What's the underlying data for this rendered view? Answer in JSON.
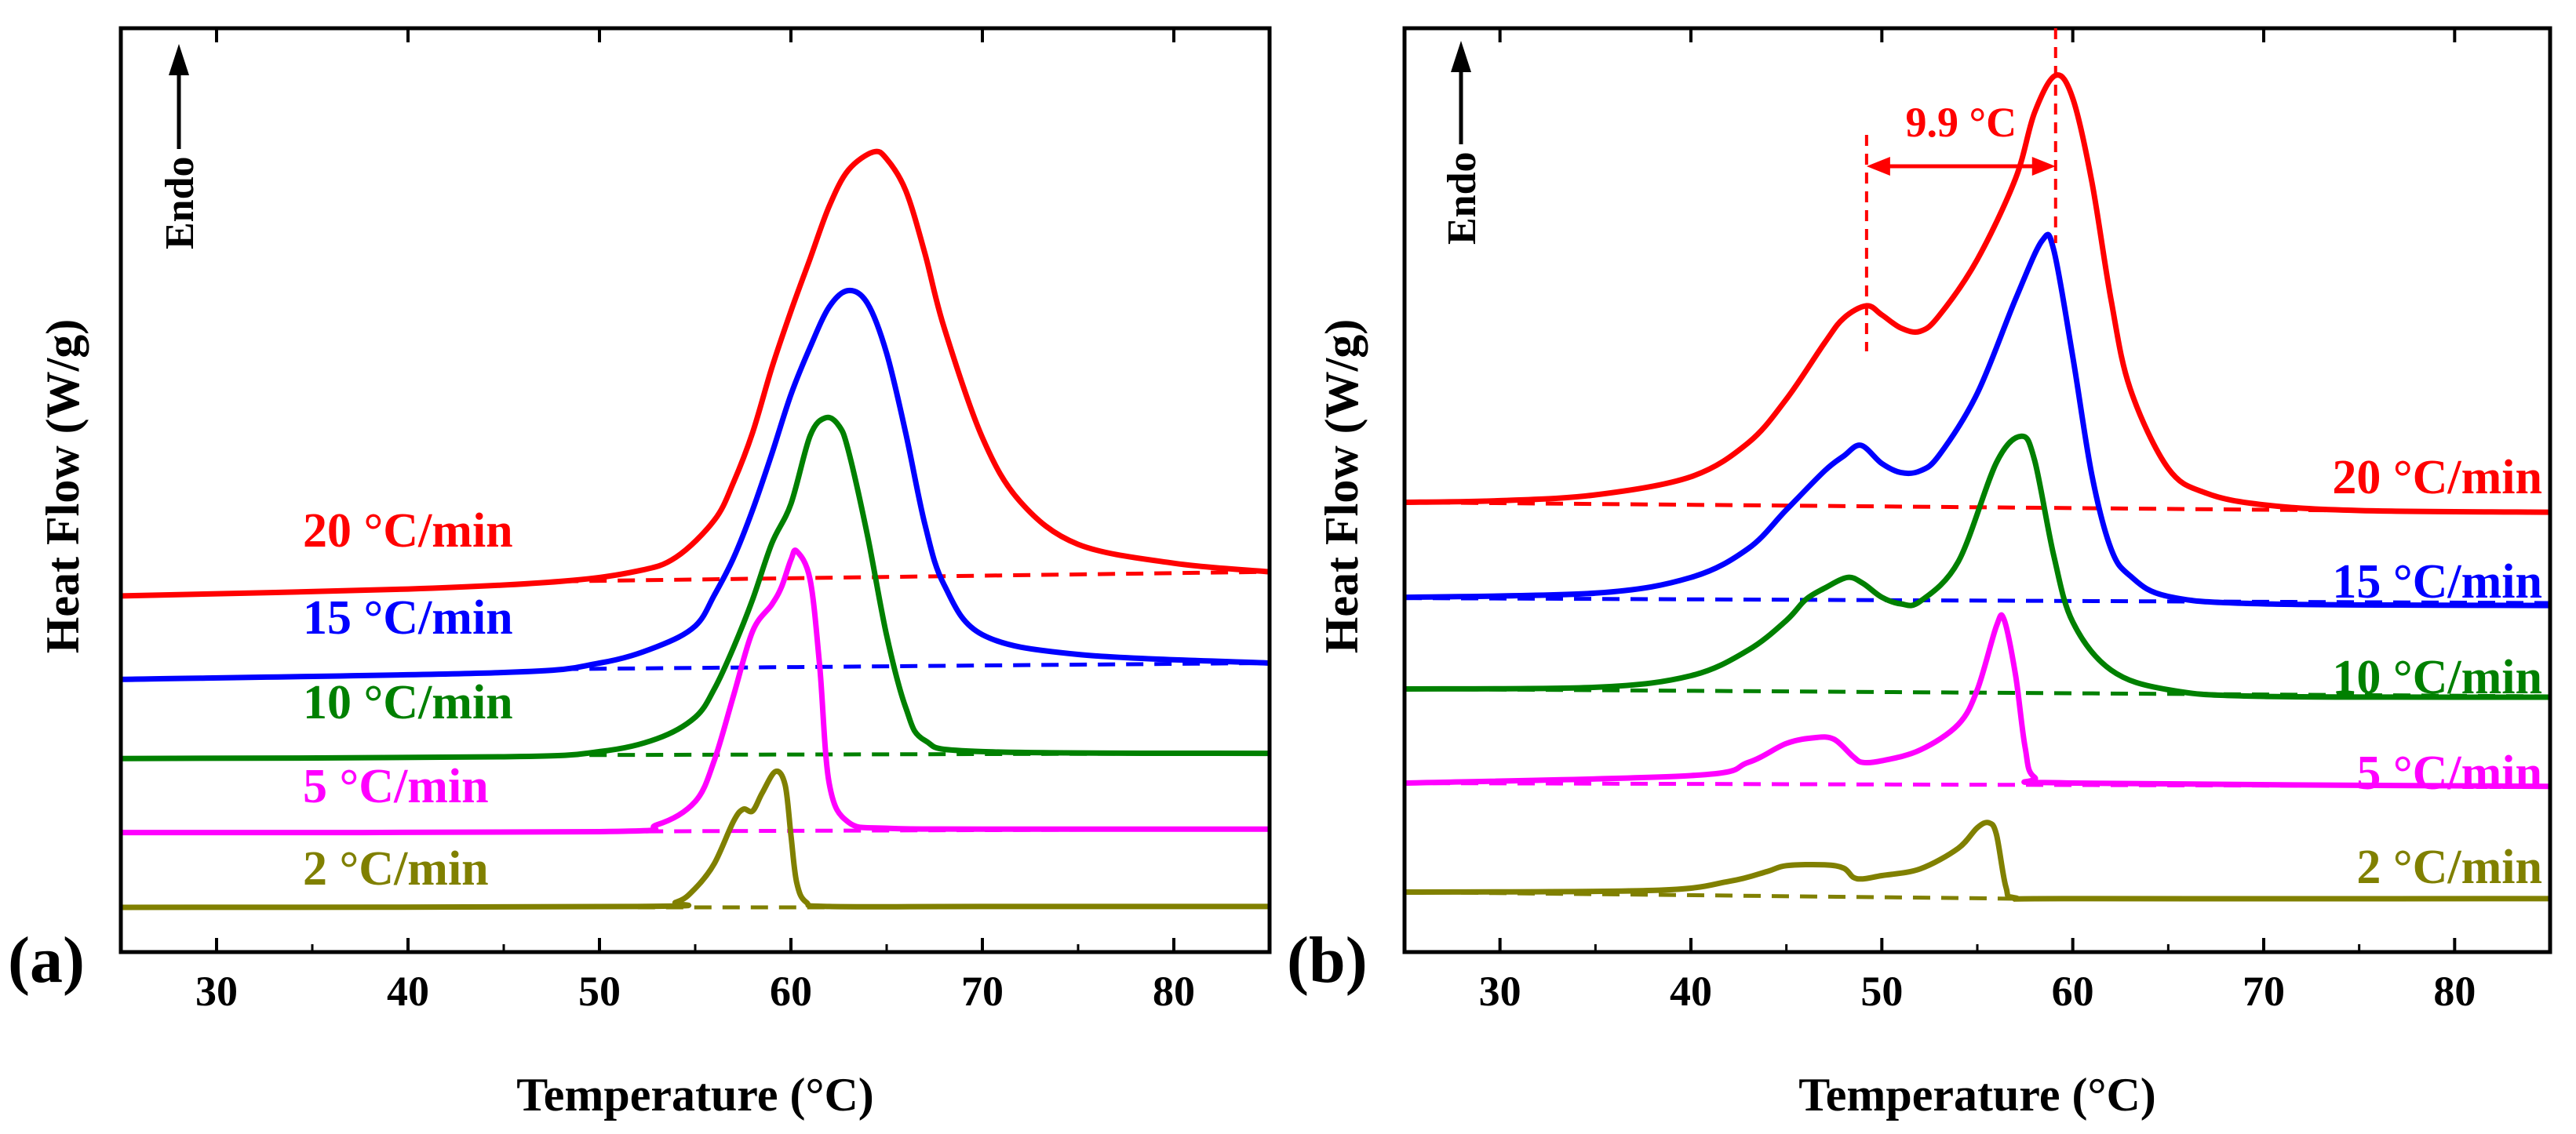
{
  "chart_data": [
    {
      "panel_label": "(a)",
      "type": "line",
      "xlabel": "Temperature (°C)",
      "ylabel": "Heat Flow (W/g)",
      "endo_label": "Endo",
      "xlim": [
        25,
        85
      ],
      "ylim": [
        0,
        100
      ],
      "xticks": [
        30,
        40,
        50,
        60,
        70,
        80
      ],
      "xtick_labels": [
        "30",
        "40",
        "50",
        "60",
        "70",
        "80"
      ],
      "legend_placement": "labels on curves, left side",
      "series": [
        {
          "name": "20 °C/min",
          "color": "#ff0000",
          "x": [
            25,
            40,
            48,
            52,
            54,
            56,
            57,
            58,
            59,
            60,
            61,
            62,
            63,
            64.3,
            65,
            66,
            67,
            68,
            70,
            72,
            75,
            80,
            85
          ],
          "y": [
            36.2,
            37,
            37.9,
            39.1,
            40.7,
            45,
            49.4,
            55.2,
            62.7,
            69.3,
            75.4,
            81.5,
            85.7,
            87.8,
            87,
            83.3,
            76,
            67.4,
            54.6,
            47.1,
            42.2,
            40,
            39
          ],
          "baseline_x": [
            48,
            85
          ],
          "baseline_y": [
            37.9,
            39
          ]
        },
        {
          "name": "15 °C/min",
          "color": "#0000ff",
          "x": [
            25,
            45,
            50,
            53,
            55,
            56,
            57,
            58,
            59,
            60,
            61,
            62,
            63,
            64,
            65,
            66,
            67,
            68,
            70,
            75,
            85
          ],
          "y": [
            26.5,
            27.3,
            28.4,
            30.3,
            32.7,
            36.3,
            40.6,
            46.2,
            52.7,
            59.6,
            65.1,
            69.8,
            71.7,
            70.2,
            64.4,
            55.1,
            44.5,
            37.5,
            31.7,
            29.4,
            28.4
          ],
          "baseline_x": [
            48,
            85
          ],
          "baseline_y": [
            27.7,
            28.4
          ]
        },
        {
          "name": "10 °C/min",
          "color": "#008000",
          "x": [
            25,
            45,
            50,
            53,
            55,
            56,
            57,
            58,
            59,
            60,
            61,
            61.8,
            62.5,
            63,
            64,
            65,
            66,
            67,
            70,
            85
          ],
          "y": [
            17.3,
            17.5,
            18.1,
            19.6,
            22.1,
            25.4,
            30.2,
            35.8,
            42.3,
            46.9,
            54.8,
            56.9,
            56,
            53.1,
            43.2,
            31.6,
            23.2,
            19.4,
            18.1,
            17.9
          ],
          "baseline_x": [
            48,
            85
          ],
          "baseline_y": [
            17.7,
            17.9
          ]
        },
        {
          "name": "5 °C/min",
          "color": "#ff00ff",
          "x": [
            25,
            50,
            53,
            55,
            56,
            57,
            58,
            59,
            59.5,
            60,
            60.3,
            61,
            61.5,
            62,
            63,
            65,
            70,
            85
          ],
          "y": [
            8.7,
            8.8,
            9.6,
            12.3,
            17.1,
            24.6,
            32.1,
            35.2,
            37.2,
            40.4,
            41.4,
            38.1,
            28.1,
            14.4,
            9.9,
            9.2,
            9.1,
            9.1
          ],
          "baseline_x": [
            48,
            85
          ],
          "baseline_y": [
            8.8,
            9.1
          ]
        },
        {
          "name": "2 °C/min",
          "color": "#808000",
          "x": [
            25,
            52,
            54,
            55,
            56,
            57,
            57.5,
            58,
            58.5,
            59.2,
            59.7,
            60,
            60.3,
            60.8,
            62,
            70,
            85
          ],
          "y": [
            0,
            0.1,
            0.6,
            2.2,
            5.1,
            10,
            11.4,
            11.2,
            13.3,
            15.8,
            14.2,
            8.4,
            2.9,
            0.6,
            0.1,
            0.1,
            0.1
          ],
          "baseline_x": [
            52,
            62
          ],
          "baseline_y": [
            0,
            0
          ]
        }
      ]
    },
    {
      "panel_label": "(b)",
      "type": "line",
      "xlabel": "Temperature (°C)",
      "ylabel": "Heat Flow (W/g)",
      "endo_label": "Endo",
      "xlim": [
        25,
        85
      ],
      "ylim": [
        0,
        100
      ],
      "xticks": [
        30,
        40,
        50,
        60,
        70,
        80
      ],
      "xtick_labels": [
        "30",
        "40",
        "50",
        "60",
        "70",
        "80"
      ],
      "legend_placement": "labels on curves, right side",
      "annotation": {
        "text": "9.9 °C",
        "x_start": 49.2,
        "x_end": 59.1
      },
      "series": [
        {
          "name": "20 °C/min",
          "color": "#ff0000",
          "x": [
            25,
            30,
            35,
            40,
            43,
            45,
            47,
            48,
            49.2,
            50,
            51,
            52,
            53,
            55,
            57,
            58,
            59.1,
            60,
            61,
            62,
            63,
            65,
            67,
            70,
            75,
            85
          ],
          "y": [
            48.1,
            48.3,
            49,
            51.2,
            55.3,
            60.6,
            67.4,
            70.4,
            71.9,
            70.8,
            69.2,
            68.8,
            70.7,
            77.5,
            87.3,
            95.3,
            99.8,
            97,
            86.9,
            72.7,
            61.9,
            52.2,
            49.2,
            47.8,
            47.1,
            46.9
          ],
          "baseline_x": [
            25,
            85
          ],
          "baseline_y": [
            48.1,
            46.9
          ]
        },
        {
          "name": "15 °C/min",
          "color": "#0000ff",
          "x": [
            25,
            35,
            40,
            43,
            45,
            47,
            48,
            48.9,
            50,
            51,
            52,
            53,
            55,
            57,
            58.4,
            59,
            60,
            61,
            62,
            63,
            65,
            70,
            85
          ],
          "y": [
            36.6,
            37.1,
            39,
            42.5,
            47.2,
            51.9,
            53.7,
            55,
            52.8,
            51.7,
            51.9,
            53.8,
            61.3,
            72.7,
            79.8,
            78.7,
            65.7,
            51.4,
            42.5,
            39.2,
            36.7,
            35.8,
            35.6
          ],
          "baseline_x": [
            25,
            85
          ],
          "baseline_y": [
            36.5,
            35.9
          ]
        },
        {
          "name": "10 °C/min",
          "color": "#008000",
          "x": [
            25,
            35,
            40,
            43,
            45,
            46,
            47,
            48.2,
            49,
            50,
            51,
            52,
            54,
            56,
            57.3,
            58,
            59,
            60,
            62,
            65,
            70,
            85
          ],
          "y": [
            25.5,
            25.7,
            27.1,
            30.2,
            33.8,
            36.3,
            37.7,
            39,
            38.3,
            36.6,
            35.8,
            36.1,
            40.9,
            52.9,
            56.1,
            53.2,
            41.7,
            33.6,
            27.8,
            25.4,
            24.6,
            24.5
          ],
          "baseline_x": [
            25,
            85
          ],
          "baseline_y": [
            25.5,
            24.6
          ]
        },
        {
          "name": "5 °C/min",
          "color": "#ff00ff",
          "x": [
            25,
            40,
            43,
            45,
            46.5,
            47.5,
            48.5,
            49,
            50,
            52,
            54,
            55,
            56,
            56.4,
            57,
            57.5,
            58,
            60,
            85
          ],
          "y": [
            14.1,
            15,
            16.6,
            18.9,
            19.6,
            19.4,
            17.3,
            16.6,
            16.8,
            18.1,
            21.2,
            25.4,
            33.1,
            33.9,
            27.2,
            18.5,
            14.8,
            14.1,
            13.7
          ],
          "baseline_x": [
            25,
            85
          ],
          "baseline_y": [
            14.1,
            13.7
          ]
        },
        {
          "name": "2 °C/min",
          "color": "#808000",
          "x": [
            25,
            38,
            42,
            44,
            45,
            47,
            48,
            48.5,
            49,
            50,
            52,
            54,
            55,
            55.6,
            56,
            56.5,
            57,
            60,
            85
          ],
          "y": [
            0.9,
            1.1,
            2.2,
            3.4,
            4.1,
            4.2,
            3.8,
            2.7,
            2.5,
            2.9,
            3.7,
            6.2,
            8.7,
            9.3,
            7.9,
            1.5,
            0.2,
            0.1,
            0.1
          ],
          "baseline_x": [
            25,
            57
          ],
          "baseline_y": [
            0.9,
            0.1
          ]
        }
      ]
    }
  ]
}
